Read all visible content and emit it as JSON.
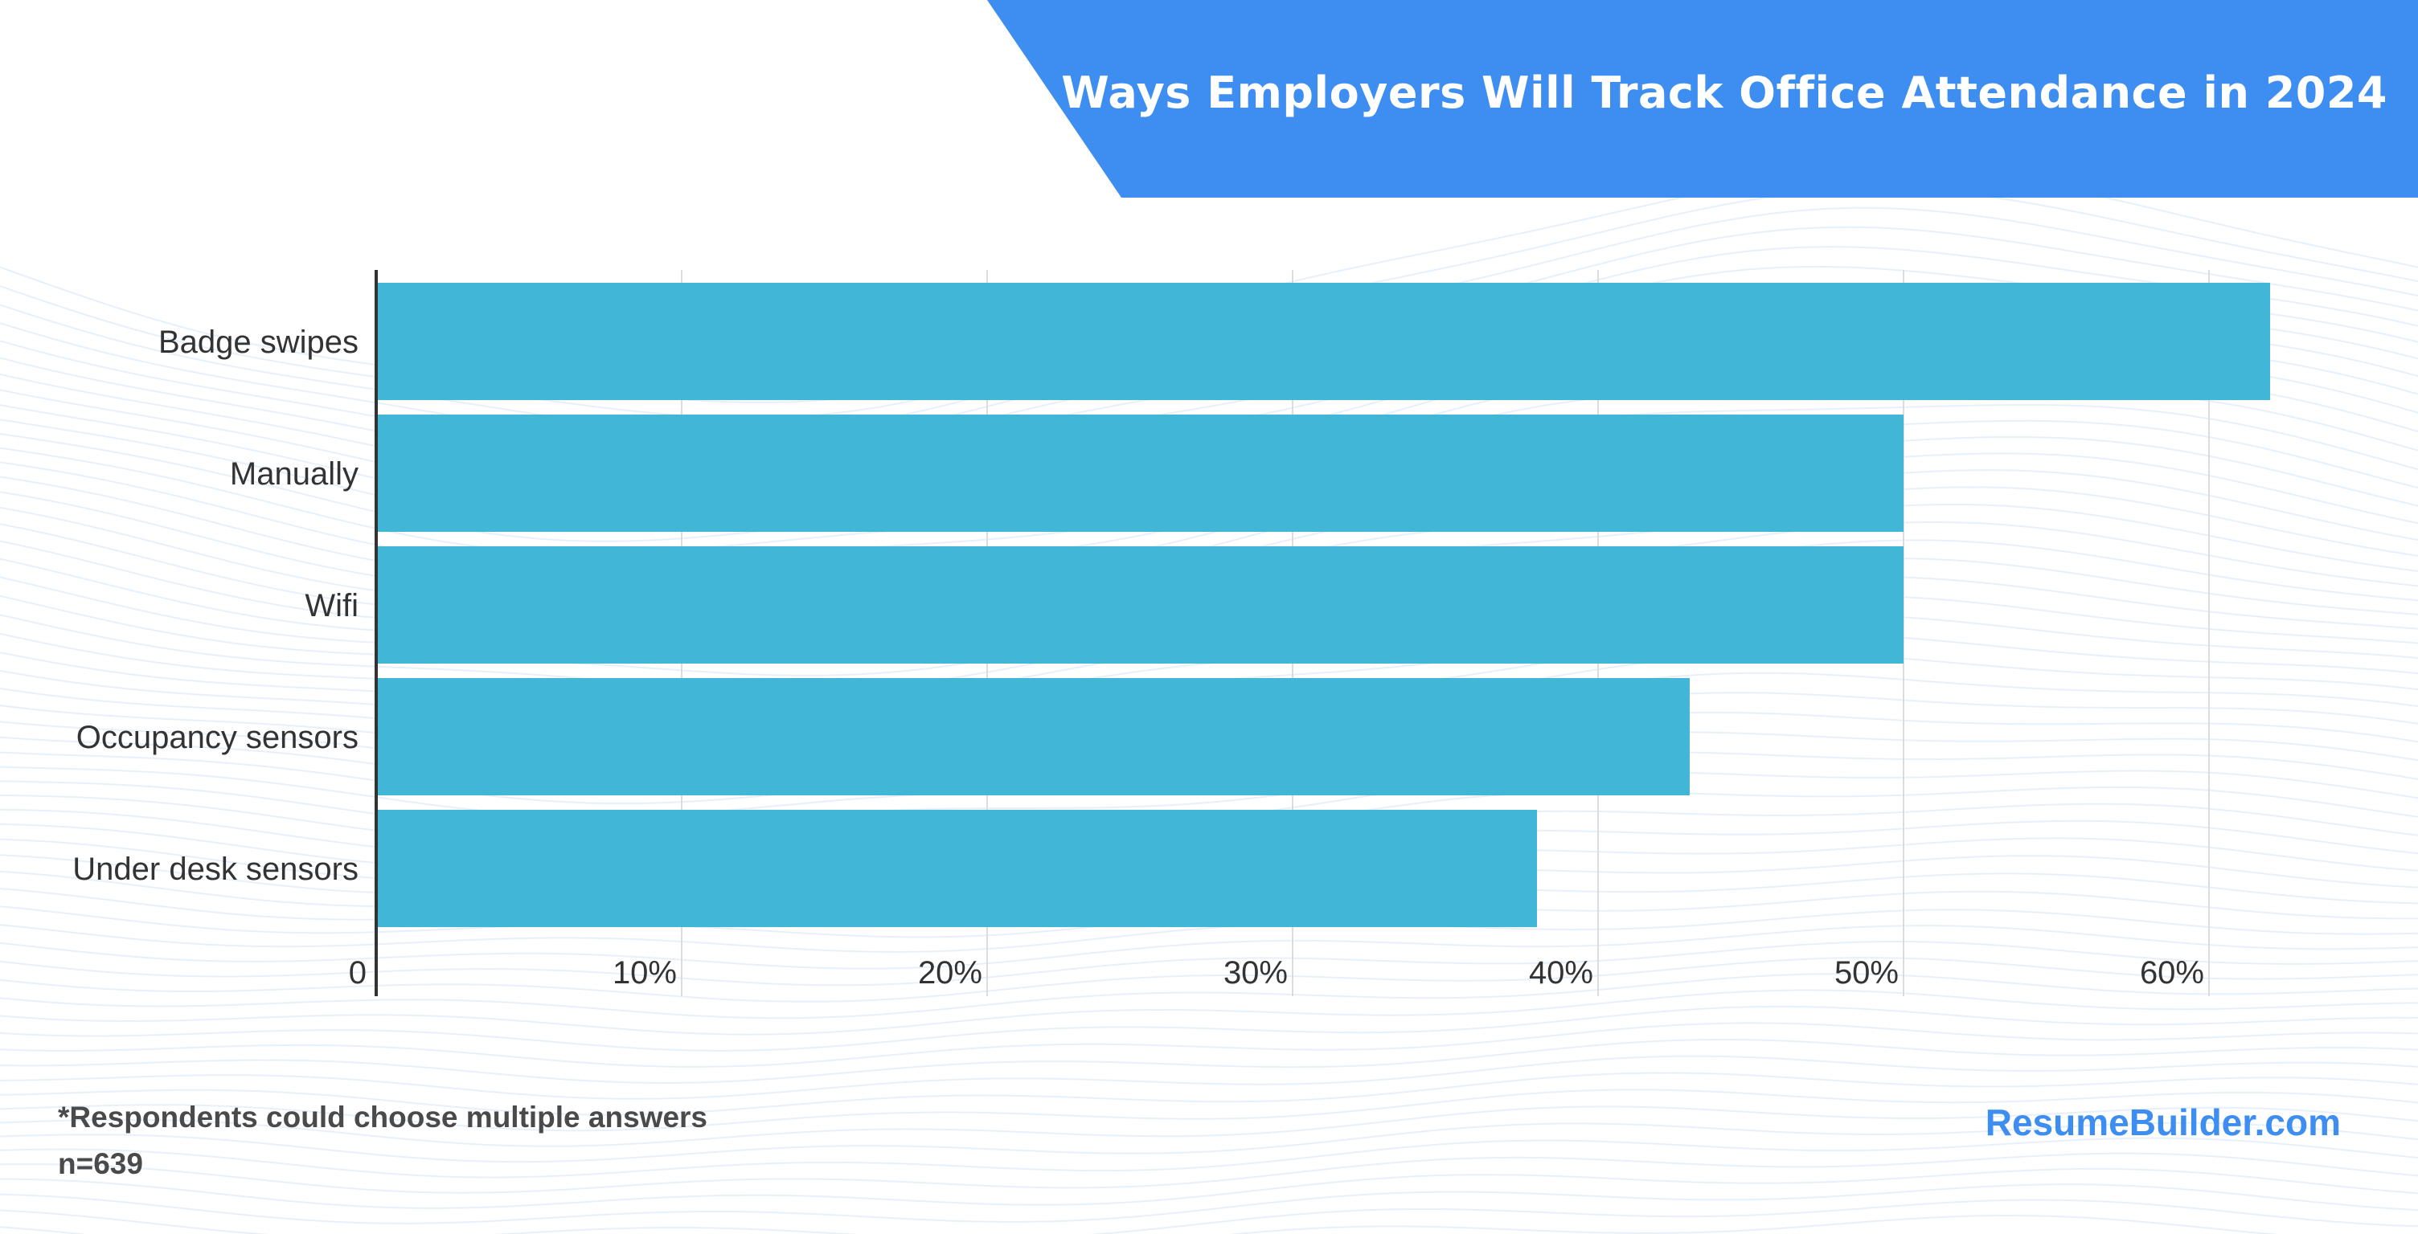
{
  "title": "Ways Employers Will Track Office Attendance in 2024",
  "colors": {
    "banner": "#3d8ef0",
    "bar": "#42b6d6",
    "grid": "#dcdcdc",
    "axis": "#333333",
    "text": "#333333",
    "brand": "#3d8ef0"
  },
  "chart_data": {
    "type": "bar",
    "orientation": "horizontal",
    "categories": [
      "Badge swipes",
      "Manually",
      "Wifi",
      "Occupancy sensors",
      "Under desk sensors"
    ],
    "values": [
      62,
      50,
      50,
      43,
      38
    ],
    "xlim": [
      0,
      66
    ],
    "xticks": [
      0,
      10,
      20,
      30,
      40,
      50,
      60
    ],
    "xtick_labels": [
      "0",
      "10%",
      "20%",
      "30%",
      "40%",
      "50%",
      "60%"
    ],
    "grid": true,
    "title": "Ways Employers Will Track Office Attendance in 2024"
  },
  "footnote": {
    "note": "*Respondents could choose multiple answers",
    "sample": "n=639"
  },
  "brand": "ResumeBuilder.com"
}
